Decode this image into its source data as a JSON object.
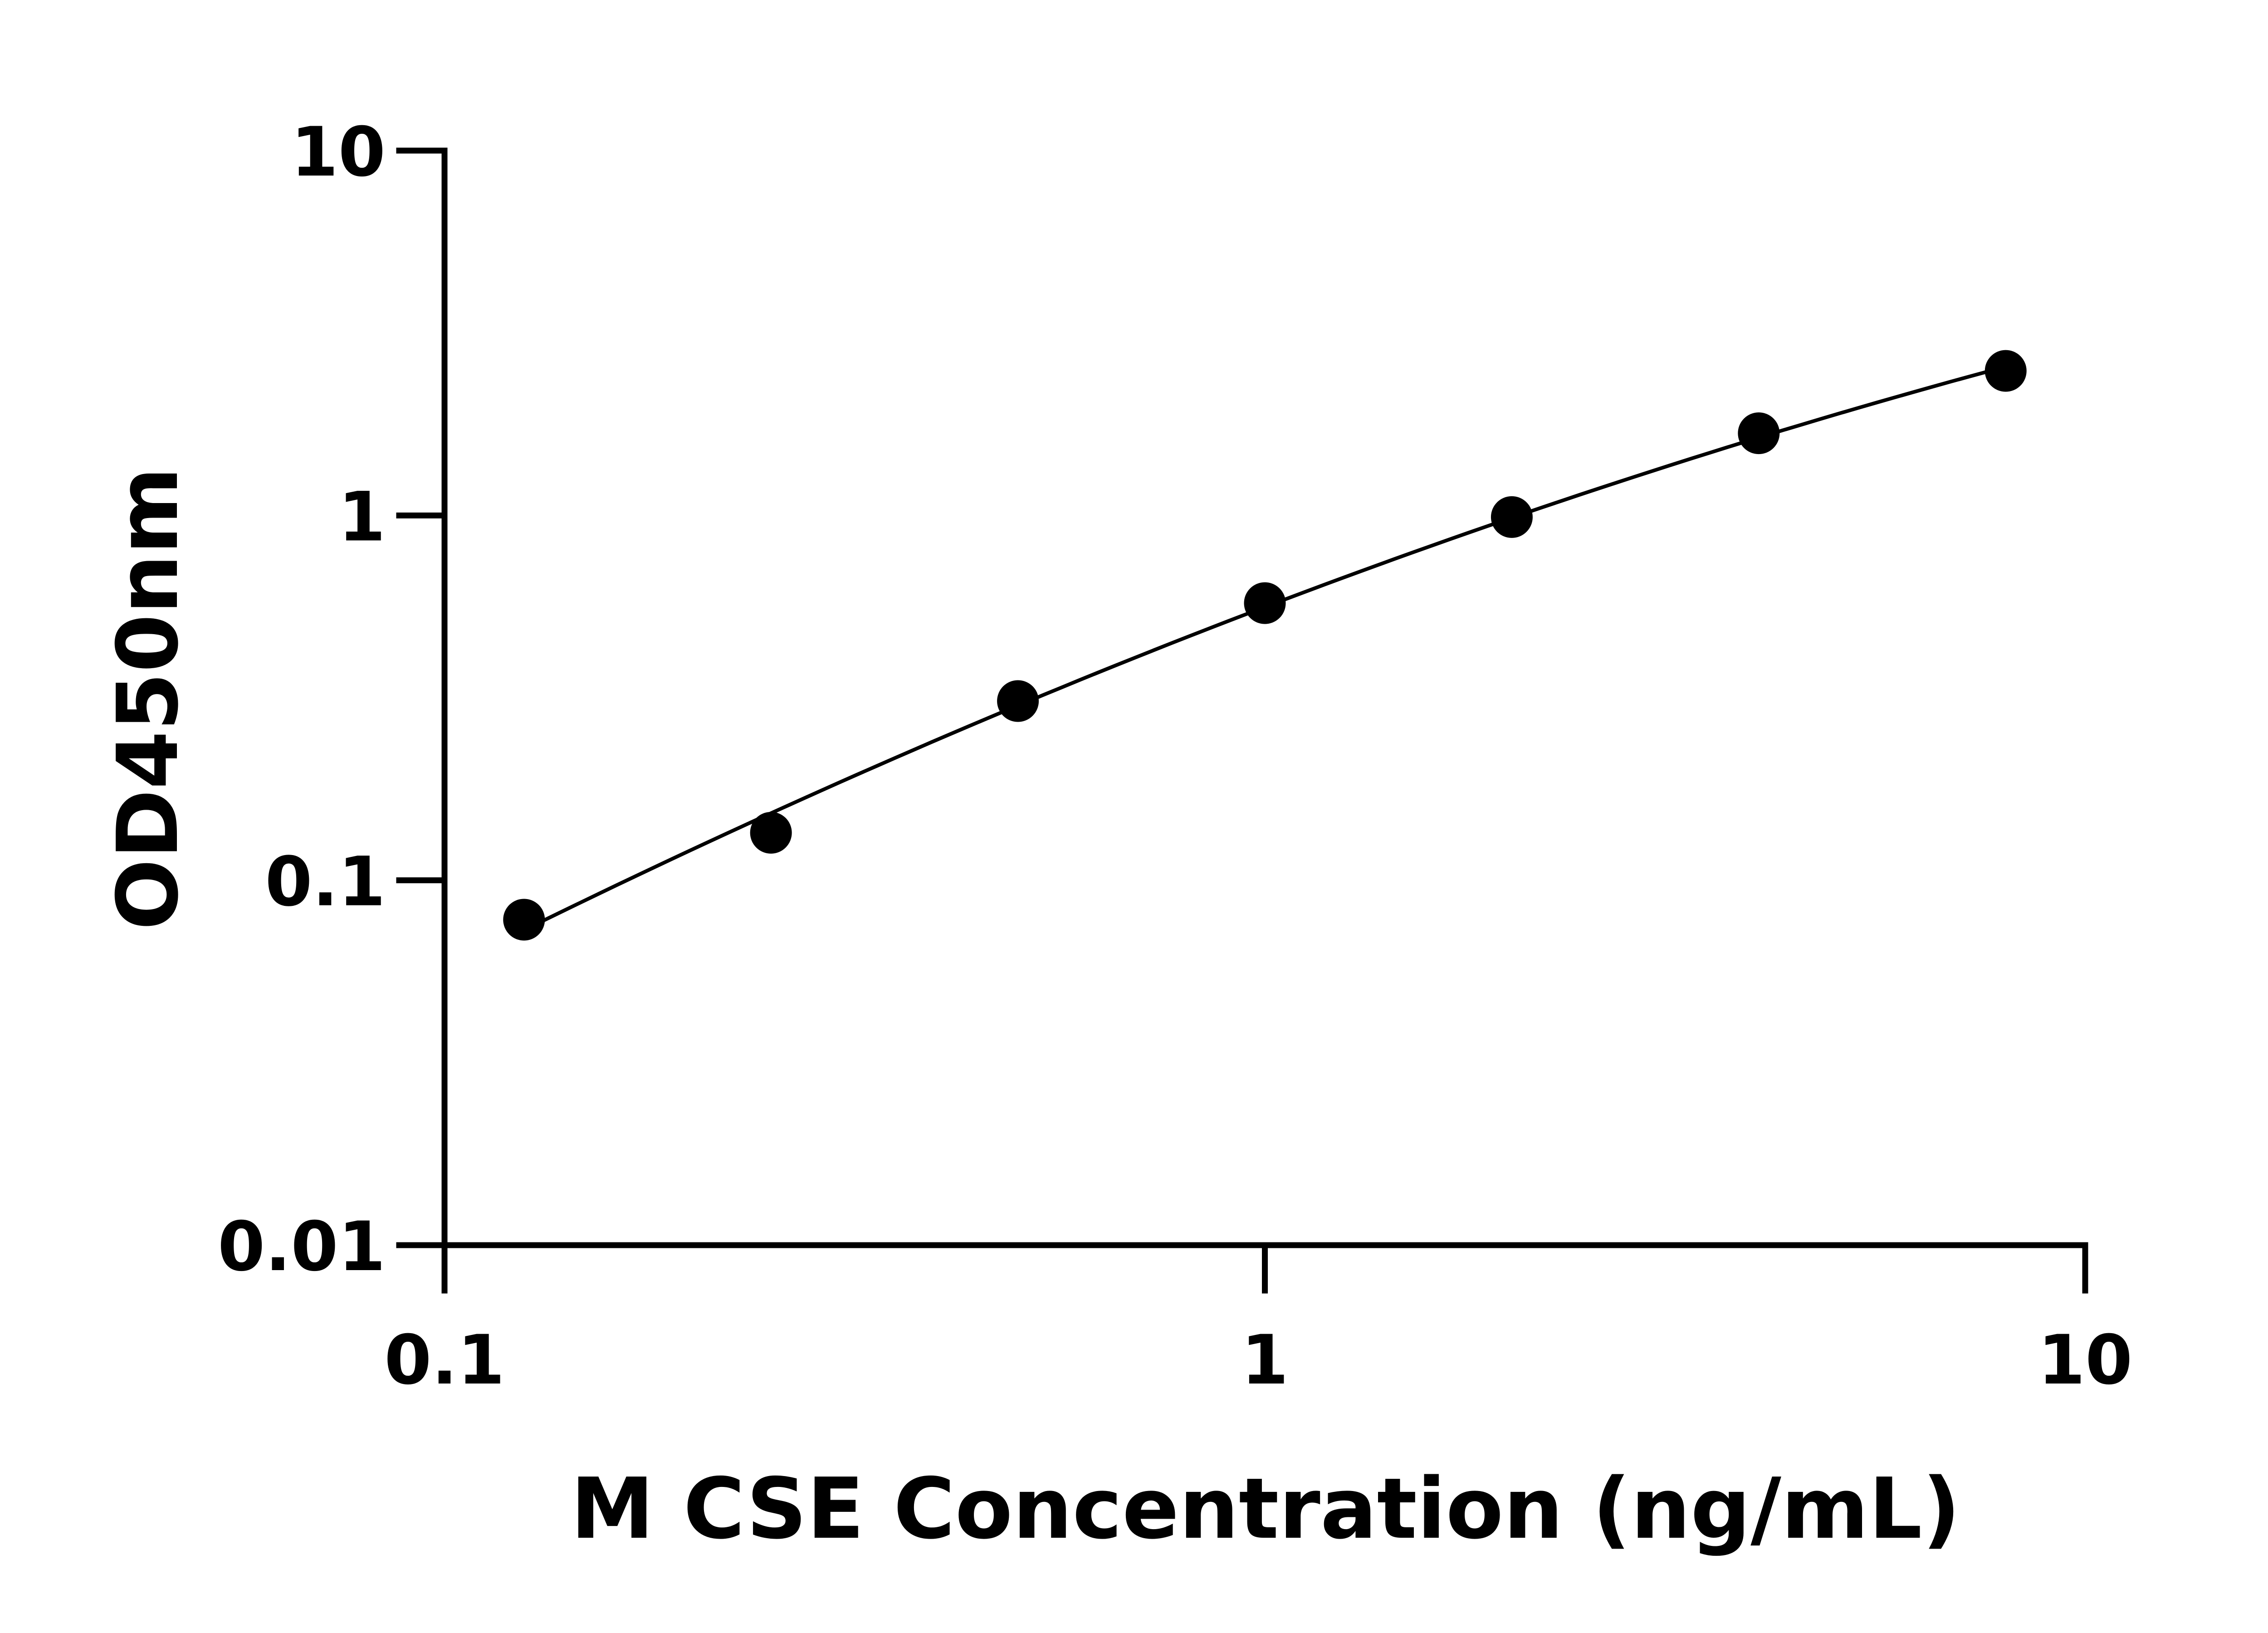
{
  "chart_data": {
    "type": "scatter",
    "title": "",
    "xlabel": "M CSE Concentration (ng/mL)",
    "ylabel": "OD450nm",
    "x_scale": "log",
    "y_scale": "log",
    "xlim": [
      0.1,
      10
    ],
    "ylim": [
      0.01,
      10
    ],
    "x_ticks": [
      "0.1",
      "1",
      "10"
    ],
    "y_ticks": [
      "0.01",
      "0.1",
      "1",
      "10"
    ],
    "grid": false,
    "legend": "none",
    "series": [
      {
        "x": [
          0.125,
          0.25,
          0.5,
          1,
          2,
          4,
          8
        ],
        "y": [
          0.078,
          0.135,
          0.31,
          0.575,
          0.99,
          1.68,
          2.49
        ],
        "marker": "filled-circle",
        "fit_line": true,
        "color": "#000000"
      }
    ]
  }
}
